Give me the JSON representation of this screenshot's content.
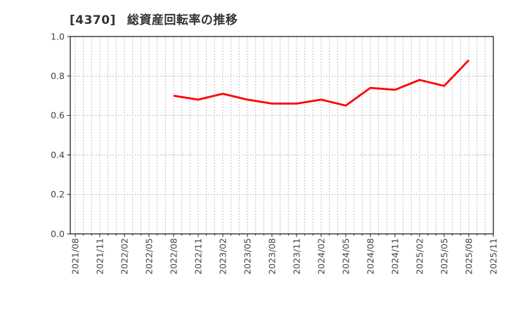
{
  "header": {
    "code": "[4370]",
    "title": "総資産回転率の推移"
  },
  "colors": {
    "line": "#ff0000",
    "grid": "#aaaaaa",
    "axis": "#222222",
    "tick_label": "#444444",
    "title": "#333333",
    "background": "#ffffff"
  },
  "chart_data": {
    "type": "line",
    "title": "[4370] 総資産回転率の推移",
    "categories": [
      "2021/08",
      "2021/11",
      "2022/02",
      "2022/05",
      "2022/08",
      "2022/11",
      "2023/02",
      "2023/05",
      "2023/08",
      "2023/11",
      "2024/02",
      "2024/05",
      "2024/08",
      "2024/11",
      "2025/02",
      "2025/05",
      "2025/08",
      "2025/11"
    ],
    "series": [
      {
        "name": "総資産回転率",
        "color": "#ff0000",
        "values": [
          null,
          null,
          null,
          null,
          0.7,
          0.68,
          0.71,
          0.68,
          0.66,
          0.66,
          0.68,
          0.65,
          0.74,
          0.73,
          0.78,
          0.75,
          0.88,
          null
        ]
      }
    ],
    "xlabel": "",
    "ylabel": "",
    "ylim": [
      0.0,
      1.0
    ],
    "yticks": [
      "0.0",
      "0.2",
      "0.4",
      "0.6",
      "0.8",
      "1.0"
    ],
    "minor_x_divisions_per_interval": 3,
    "grid": "dotted",
    "legend": "none"
  }
}
